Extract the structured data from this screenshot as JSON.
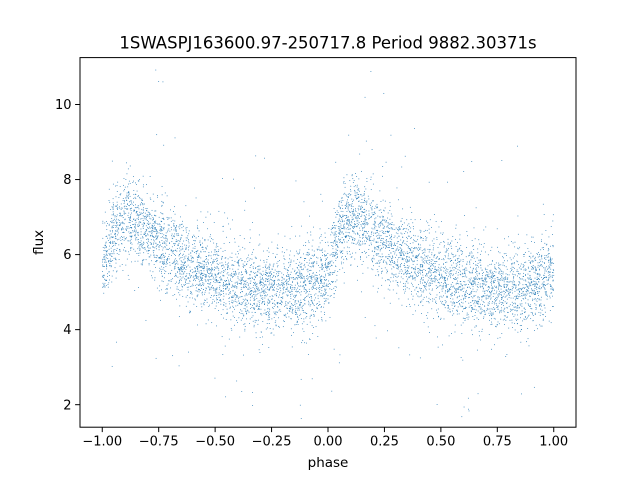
{
  "chart_data": {
    "type": "scatter",
    "title": "1SWASPJ163600.97-250717.8 Period 9882.30371s",
    "xlabel": "phase",
    "ylabel": "flux",
    "xlim": [
      -1.0986,
      1.0986
    ],
    "ylim": [
      1.4,
      11.25
    ],
    "x_ticks": [
      -1.0,
      -0.75,
      -0.5,
      -0.25,
      0.0,
      0.25,
      0.5,
      0.75,
      1.0
    ],
    "x_tick_labels": [
      "−1.00",
      "−0.75",
      "−0.50",
      "−0.25",
      "0.00",
      "0.25",
      "0.50",
      "0.75",
      "1.00"
    ],
    "y_ticks": [
      2,
      4,
      6,
      8,
      10
    ],
    "y_tick_labels": [
      "2",
      "4",
      "6",
      "8",
      "10"
    ],
    "grid": false,
    "legend": "none",
    "marker_color": "#1f77b4",
    "folded_trend": {
      "description_phase": [
        0.0,
        0.05,
        0.1,
        0.15,
        0.2,
        0.25,
        0.3,
        0.35,
        0.4,
        0.45,
        0.5,
        0.55,
        0.6,
        0.65,
        0.7,
        0.75,
        0.8,
        0.85,
        0.9,
        0.95,
        1.0
      ],
      "flux": [
        5.6,
        6.6,
        7.0,
        6.9,
        6.6,
        6.3,
        6.1,
        5.9,
        5.7,
        5.55,
        5.4,
        5.3,
        5.2,
        5.15,
        5.1,
        5.05,
        5.05,
        5.1,
        5.2,
        5.3,
        5.6
      ]
    },
    "scatter_sigma": 0.55,
    "points_per_unit_phase": 3200,
    "series": [
      {
        "x_range": [
          -1.0,
          1.0
        ]
      }
    ]
  }
}
